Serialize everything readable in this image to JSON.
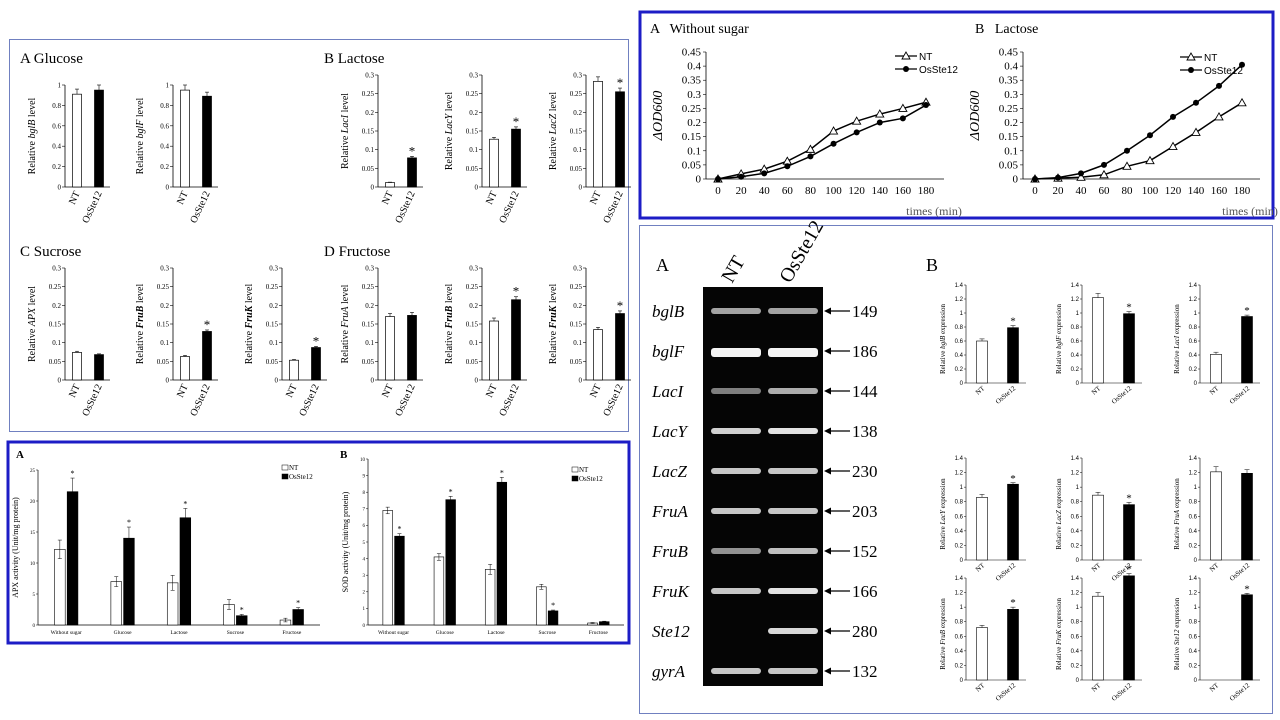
{
  "colors": {
    "panel_border": "#7080c0",
    "panel_border_thick": "#1d1dc6",
    "gel_bg": "#050505",
    "band": "#f4f4f4",
    "bar_filled": "#000000",
    "bar_open": "#ffffff"
  },
  "labels": {
    "nt": "NT",
    "ost": "OsSte12",
    "star": "*",
    "A": "A",
    "B": "B",
    "C": "C",
    "D": "D"
  },
  "panel1": {
    "titles": {
      "glucose": "A Glucose",
      "lactose": "B Lactose",
      "sucrose": "C Sucrose",
      "fructose": "D Fructose"
    },
    "ylabel_prefix": "Relative",
    "ylabel_suffix": "level"
  },
  "chart_data": [
    {
      "panel": "small-bars",
      "type": "bar",
      "group": "A Glucose",
      "gene": "bglB",
      "categories": [
        "NT",
        "OsSte12"
      ],
      "values": [
        0.91,
        0.95
      ],
      "errors": [
        0.05,
        0.05
      ],
      "ylim": [
        0,
        1
      ],
      "yticks": [
        "0",
        "0.2",
        "0.4",
        "0.6",
        "0.8",
        "1"
      ],
      "sig": [
        false,
        false
      ]
    },
    {
      "panel": "small-bars",
      "type": "bar",
      "group": "A Glucose",
      "gene": "bglF",
      "categories": [
        "NT",
        "OsSte12"
      ],
      "values": [
        0.95,
        0.89
      ],
      "errors": [
        0.05,
        0.04
      ],
      "ylim": [
        0,
        1
      ],
      "yticks": [
        "0",
        "0.2",
        "0.4",
        "0.6",
        "0.8",
        "1"
      ],
      "sig": [
        false,
        false
      ]
    },
    {
      "panel": "small-bars",
      "type": "bar",
      "group": "B Lactose",
      "gene": "LacI",
      "categories": [
        "NT",
        "OsSte12"
      ],
      "values": [
        0.012,
        0.078
      ],
      "errors": [
        0.001,
        0.004
      ],
      "ylim": [
        0,
        0.3
      ],
      "yticks": [
        "0",
        "0.05",
        "0.1",
        "0.15",
        "0.2",
        "0.25",
        "0.3"
      ],
      "sig": [
        false,
        true
      ]
    },
    {
      "panel": "small-bars",
      "type": "bar",
      "group": "B Lactose",
      "gene": "LacY",
      "categories": [
        "NT",
        "OsSte12"
      ],
      "values": [
        0.128,
        0.155
      ],
      "errors": [
        0.005,
        0.006
      ],
      "ylim": [
        0,
        0.3
      ],
      "yticks": [
        "0",
        "0.05",
        "0.1",
        "0.15",
        "0.2",
        "0.25",
        "0.3"
      ],
      "sig": [
        false,
        true
      ]
    },
    {
      "panel": "small-bars",
      "type": "bar",
      "group": "B Lactose",
      "gene": "LacZ",
      "categories": [
        "NT",
        "OsSte12"
      ],
      "values": [
        0.283,
        0.255
      ],
      "errors": [
        0.012,
        0.01
      ],
      "ylim": [
        0,
        0.3
      ],
      "yticks": [
        "0",
        "0.05",
        "0.1",
        "0.15",
        "0.2",
        "0.25",
        "0.3"
      ],
      "sig": [
        false,
        true
      ]
    },
    {
      "panel": "small-bars",
      "type": "bar",
      "group": "C Sucrose",
      "gene": "APX",
      "categories": [
        "NT",
        "OsSte12"
      ],
      "values": [
        0.074,
        0.068
      ],
      "errors": [
        0.003,
        0.002
      ],
      "ylim": [
        0,
        0.3
      ],
      "yticks": [
        "0",
        "0.05",
        "0.1",
        "0.15",
        "0.2",
        "0.25",
        "0.3"
      ],
      "sig": [
        false,
        false
      ],
      "italic_bold": false
    },
    {
      "panel": "small-bars",
      "type": "bar",
      "group": "C Sucrose",
      "gene": "FruB",
      "categories": [
        "NT",
        "OsSte12"
      ],
      "values": [
        0.063,
        0.13
      ],
      "errors": [
        0.003,
        0.004
      ],
      "ylim": [
        0,
        0.3
      ],
      "yticks": [
        "0",
        "0.05",
        "0.1",
        "0.15",
        "0.2",
        "0.25",
        "0.3"
      ],
      "sig": [
        false,
        true
      ]
    },
    {
      "panel": "small-bars",
      "type": "bar",
      "group": "C Sucrose",
      "gene": "FruK",
      "categories": [
        "NT",
        "OsSte12"
      ],
      "values": [
        0.053,
        0.087
      ],
      "errors": [
        0.002,
        0.003
      ],
      "ylim": [
        0,
        0.3
      ],
      "yticks": [
        "0",
        "0.05",
        "0.1",
        "0.15",
        "0.2",
        "0.25",
        "0.3"
      ],
      "sig": [
        false,
        true
      ]
    },
    {
      "panel": "small-bars",
      "type": "bar",
      "group": "D Fructose",
      "gene": "FruA",
      "categories": [
        "NT",
        "OsSte12"
      ],
      "values": [
        0.17,
        0.173
      ],
      "errors": [
        0.008,
        0.008
      ],
      "ylim": [
        0,
        0.3
      ],
      "yticks": [
        "0",
        "0.05",
        "0.1",
        "0.15",
        "0.2",
        "0.25",
        "0.3"
      ],
      "sig": [
        false,
        false
      ]
    },
    {
      "panel": "small-bars",
      "type": "bar",
      "group": "D Fructose",
      "gene": "FruB",
      "categories": [
        "NT",
        "OsSte12"
      ],
      "values": [
        0.158,
        0.215
      ],
      "errors": [
        0.008,
        0.008
      ],
      "ylim": [
        0,
        0.3
      ],
      "yticks": [
        "0",
        "0.05",
        "0.1",
        "0.15",
        "0.2",
        "0.25",
        "0.3"
      ],
      "sig": [
        false,
        true
      ]
    },
    {
      "panel": "small-bars",
      "type": "bar",
      "group": "D Fructose",
      "gene": "FruK",
      "categories": [
        "NT",
        "OsSte12"
      ],
      "values": [
        0.135,
        0.178
      ],
      "errors": [
        0.006,
        0.007
      ],
      "ylim": [
        0,
        0.3
      ],
      "yticks": [
        "0",
        "0.05",
        "0.1",
        "0.15",
        "0.2",
        "0.25",
        "0.3"
      ],
      "sig": [
        false,
        true
      ]
    },
    {
      "panel": "enzyme",
      "type": "bar",
      "letter": "A",
      "ylabel": "APX activity (Unit/mg protein)",
      "categories": [
        "Without sugar",
        "Glucose",
        "Lactose",
        "Sucrose",
        "Fructose"
      ],
      "ylim": [
        0,
        25
      ],
      "series": [
        {
          "name": "NT",
          "values": [
            12.2,
            7.0,
            6.8,
            3.3,
            0.8
          ],
          "errors": [
            1.5,
            0.8,
            1.2,
            0.8,
            0.3
          ],
          "sig": [
            false,
            false,
            false,
            false,
            false
          ]
        },
        {
          "name": "OsSte12",
          "values": [
            21.5,
            14.0,
            17.3,
            1.5,
            2.5
          ],
          "errors": [
            2.2,
            1.8,
            1.5,
            0.2,
            0.3
          ],
          "sig": [
            true,
            true,
            true,
            true,
            true
          ]
        }
      ]
    },
    {
      "panel": "enzyme",
      "type": "bar",
      "letter": "B",
      "ylabel": "SOD activity (Unit/mg protein)",
      "categories": [
        "Without sugar",
        "Glucose",
        "Lactose",
        "Sucrose",
        "Fructose"
      ],
      "ylim": [
        0,
        10
      ],
      "yticks": [
        "0",
        "1",
        "2",
        "3",
        "4",
        "5",
        "6",
        "7",
        "8",
        "9",
        "10"
      ],
      "series": [
        {
          "name": "NT",
          "values": [
            6.9,
            4.1,
            3.35,
            2.3,
            0.12
          ],
          "errors": [
            0.2,
            0.2,
            0.3,
            0.15,
            0.03
          ],
          "sig": [
            false,
            false,
            false,
            false,
            false
          ]
        },
        {
          "name": "OsSte12",
          "values": [
            5.35,
            7.55,
            8.6,
            0.85,
            0.2
          ],
          "errors": [
            0.15,
            0.2,
            0.3,
            0.05,
            0.03
          ],
          "sig": [
            true,
            true,
            true,
            true,
            false
          ]
        }
      ]
    },
    {
      "panel": "growth",
      "type": "line",
      "title": "A   Without sugar",
      "ylabel": "ΔOD600",
      "xlabel": "times (min)",
      "x": [
        0,
        20,
        40,
        60,
        80,
        100,
        120,
        140,
        160,
        180
      ],
      "ylim": [
        0,
        0.45
      ],
      "yticks": [
        "0",
        "0.05",
        "0.1",
        "0.15",
        "0.2",
        "0.25",
        "0.3",
        "0.35",
        "0.4",
        "0.45"
      ],
      "series": [
        {
          "name": "NT",
          "values": [
            0,
            0.018,
            0.035,
            0.063,
            0.105,
            0.17,
            0.205,
            0.23,
            0.25,
            0.272
          ]
        },
        {
          "name": "OsSte12",
          "values": [
            0,
            0.008,
            0.02,
            0.045,
            0.08,
            0.125,
            0.165,
            0.2,
            0.215,
            0.262
          ]
        }
      ]
    },
    {
      "panel": "growth",
      "type": "line",
      "title": "B   Lactose",
      "ylabel": "ΔOD600",
      "xlabel": "times (min)",
      "x": [
        0,
        20,
        40,
        60,
        80,
        100,
        120,
        140,
        160,
        180
      ],
      "ylim": [
        0,
        0.45
      ],
      "yticks": [
        "0",
        "0.05",
        "0.1",
        "0.15",
        "0.2",
        "0.25",
        "0.3",
        "0.35",
        "0.4",
        "0.45"
      ],
      "series": [
        {
          "name": "NT",
          "values": [
            0,
            0.003,
            0.006,
            0.015,
            0.045,
            0.065,
            0.115,
            0.165,
            0.22,
            0.27
          ]
        },
        {
          "name": "OsSte12",
          "values": [
            0,
            0.005,
            0.02,
            0.05,
            0.1,
            0.155,
            0.22,
            0.27,
            0.33,
            0.405
          ]
        }
      ]
    },
    {
      "panel": "gel",
      "type": "table",
      "letter": "A",
      "lanes": [
        "NT",
        "OsSte12"
      ],
      "rows": [
        {
          "gene": "bglB",
          "size": "149",
          "nt": 0.55,
          "ost": 0.55
        },
        {
          "gene": "bglF",
          "size": "186",
          "nt": 1.0,
          "ost": 1.0
        },
        {
          "gene": "LacI",
          "size": "144",
          "nt": 0.35,
          "ost": 0.6
        },
        {
          "gene": "LacY",
          "size": "138",
          "nt": 0.8,
          "ost": 0.9
        },
        {
          "gene": "LacZ",
          "size": "230",
          "nt": 0.75,
          "ost": 0.75
        },
        {
          "gene": "FruA",
          "size": "203",
          "nt": 0.75,
          "ost": 0.75
        },
        {
          "gene": "FruB",
          "size": "152",
          "nt": 0.45,
          "ost": 0.7
        },
        {
          "gene": "FruK",
          "size": "166",
          "nt": 0.75,
          "ost": 0.9
        },
        {
          "gene": "Ste12",
          "size": "280",
          "nt": 0,
          "ost": 0.85
        },
        {
          "gene": "gyrA",
          "size": "132",
          "nt": 0.75,
          "ost": 0.75
        }
      ]
    },
    {
      "panel": "expr",
      "type": "bar",
      "letter": "B",
      "gene": "bglB",
      "categories": [
        "NT",
        "OsSte12"
      ],
      "values": [
        0.6,
        0.79
      ],
      "errors": [
        0.03,
        0.03
      ],
      "sig": [
        false,
        true
      ],
      "ylim": [
        0,
        1.4
      ],
      "yticks": [
        "0",
        "0.2",
        "0.4",
        "0.6",
        "0.8",
        "1",
        "1.2",
        "1.4"
      ]
    },
    {
      "panel": "expr",
      "type": "bar",
      "gene": "bglF",
      "categories": [
        "NT",
        "OsSte12"
      ],
      "values": [
        1.22,
        0.99
      ],
      "errors": [
        0.06,
        0.03
      ],
      "sig": [
        false,
        true
      ],
      "ylim": [
        0,
        1.4
      ],
      "yticks": [
        "0",
        "0.2",
        "0.4",
        "0.6",
        "0.8",
        "1",
        "1.2",
        "1.4"
      ]
    },
    {
      "panel": "expr",
      "type": "bar",
      "gene": "LacI",
      "categories": [
        "NT",
        "OsSte12"
      ],
      "values": [
        0.41,
        0.95
      ],
      "errors": [
        0.03,
        0.02
      ],
      "sig": [
        false,
        true
      ],
      "ylim": [
        0,
        1.4
      ],
      "yticks": [
        "0",
        "0.2",
        "0.4",
        "0.6",
        "0.8",
        "1",
        "1.2",
        "1.4"
      ]
    },
    {
      "panel": "expr",
      "type": "bar",
      "gene": "LacY",
      "categories": [
        "NT",
        "OsSte12"
      ],
      "values": [
        0.86,
        1.04
      ],
      "errors": [
        0.04,
        0.02
      ],
      "sig": [
        false,
        true
      ],
      "ylim": [
        0,
        1.4
      ],
      "yticks": [
        "0",
        "0.2",
        "0.4",
        "0.6",
        "0.8",
        "1",
        "1.2",
        "1.4"
      ]
    },
    {
      "panel": "expr",
      "type": "bar",
      "gene": "LacZ",
      "categories": [
        "NT",
        "OsSte12"
      ],
      "values": [
        0.89,
        0.76
      ],
      "errors": [
        0.04,
        0.03
      ],
      "sig": [
        false,
        true
      ],
      "ylim": [
        0,
        1.4
      ],
      "yticks": [
        "0",
        "0.2",
        "0.4",
        "0.6",
        "0.8",
        "1",
        "1.2",
        "1.4"
      ]
    },
    {
      "panel": "expr",
      "type": "bar",
      "gene": "FruA",
      "categories": [
        "NT",
        "OsSte12"
      ],
      "values": [
        1.21,
        1.19
      ],
      "errors": [
        0.07,
        0.05
      ],
      "sig": [
        false,
        false
      ],
      "ylim": [
        0,
        1.4
      ],
      "yticks": [
        "0",
        "0.2",
        "0.4",
        "0.6",
        "0.8",
        "1",
        "1.2",
        "1.4"
      ]
    },
    {
      "panel": "expr",
      "type": "bar",
      "gene": "FruB",
      "categories": [
        "NT",
        "OsSte12"
      ],
      "values": [
        0.72,
        0.97
      ],
      "errors": [
        0.03,
        0.03
      ],
      "sig": [
        false,
        true
      ],
      "ylim": [
        0,
        1.4
      ],
      "yticks": [
        "0",
        "0.2",
        "0.4",
        "0.6",
        "0.8",
        "1",
        "1.2",
        "1.4"
      ]
    },
    {
      "panel": "expr",
      "type": "bar",
      "gene": "FruK",
      "categories": [
        "NT",
        "OsSte12"
      ],
      "values": [
        1.15,
        1.43
      ],
      "errors": [
        0.05,
        0.03
      ],
      "sig": [
        false,
        true
      ],
      "ylim": [
        0,
        1.4
      ],
      "yticks": [
        "0",
        "0.2",
        "0.4",
        "0.6",
        "0.8",
        "1",
        "1.2",
        "1.4"
      ]
    },
    {
      "panel": "expr",
      "type": "bar",
      "gene": "Ste12",
      "categories": [
        "NT",
        "OsSte12"
      ],
      "values": [
        0,
        1.17
      ],
      "errors": [
        0,
        0.02
      ],
      "sig": [
        false,
        true
      ],
      "ylim": [
        0,
        1.4
      ],
      "yticks": [
        "0",
        "0.2",
        "0.4",
        "0.6",
        "0.8",
        "1",
        "1.2",
        "1.4"
      ]
    }
  ]
}
